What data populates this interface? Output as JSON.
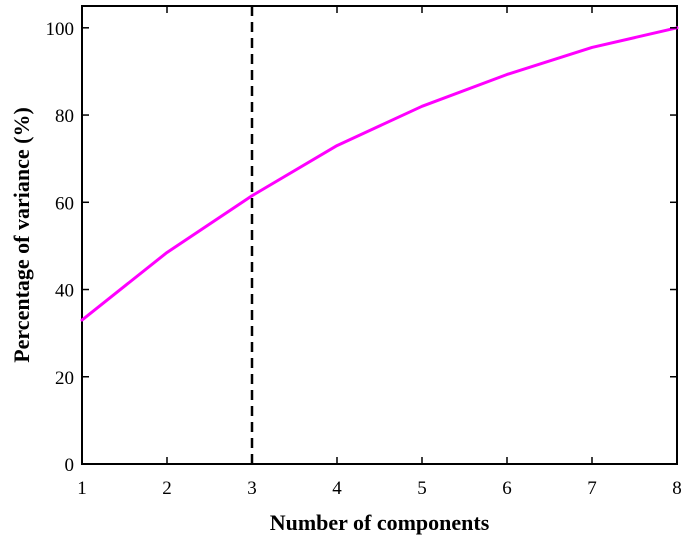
{
  "chart_data": {
    "type": "line",
    "title": "",
    "xlabel": "Number of components",
    "ylabel": "Percentage of variance (%)",
    "xlim": [
      1,
      8
    ],
    "ylim": [
      0,
      105
    ],
    "x_ticks": [
      1,
      2,
      3,
      4,
      5,
      6,
      7,
      8
    ],
    "y_ticks": [
      0,
      20,
      40,
      60,
      80,
      100
    ],
    "grid": false,
    "series": [
      {
        "x": [
          1,
          2,
          3,
          4,
          5,
          6,
          7,
          8
        ],
        "values": [
          33,
          48.5,
          61.5,
          73,
          82,
          89.3,
          95.5,
          100
        ],
        "color": "#ff00ff",
        "style": "solid"
      }
    ],
    "reference_lines": [
      {
        "orientation": "vertical",
        "x": 3,
        "color": "#000000",
        "style": "dashed"
      }
    ]
  }
}
